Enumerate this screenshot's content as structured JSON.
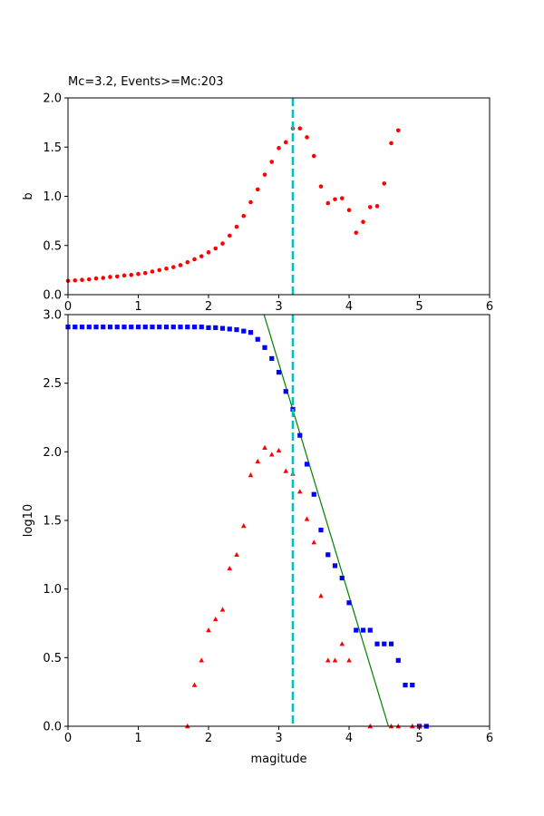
{
  "chart_data": [
    {
      "type": "scatter",
      "title": "Mc=3.2, Events>=Mc:203",
      "xlabel": "",
      "ylabel": "b",
      "xlim": [
        0,
        6
      ],
      "ylim": [
        0,
        2.0
      ],
      "xticks": [
        "0",
        "1",
        "2",
        "3",
        "4",
        "5",
        "6"
      ],
      "yticks": [
        "0.0",
        "0.5",
        "1.0",
        "1.5",
        "2.0"
      ],
      "grid": false,
      "mc_line_x": 3.2,
      "colors": {
        "points": "#ff0000",
        "mc_line": "#00bfbf"
      },
      "series": [
        {
          "x": [
            0.0,
            0.1,
            0.2,
            0.3,
            0.4,
            0.5,
            0.6,
            0.7,
            0.8,
            0.9,
            1.0,
            1.1,
            1.2,
            1.3,
            1.4,
            1.5,
            1.6,
            1.7,
            1.8,
            1.9,
            2.0,
            2.1,
            2.2,
            2.3,
            2.4,
            2.5,
            2.6,
            2.7,
            2.8,
            2.9,
            3.0,
            3.1,
            3.2,
            3.3,
            3.4,
            3.5,
            3.6,
            3.7,
            3.8,
            3.9,
            4.0,
            4.1,
            4.2,
            4.3,
            4.4,
            4.5,
            4.6,
            4.7
          ],
          "values": [
            0.14,
            0.145,
            0.15,
            0.155,
            0.165,
            0.17,
            0.18,
            0.185,
            0.195,
            0.2,
            0.21,
            0.22,
            0.235,
            0.25,
            0.265,
            0.28,
            0.3,
            0.33,
            0.36,
            0.39,
            0.43,
            0.47,
            0.52,
            0.6,
            0.69,
            0.8,
            0.94,
            1.07,
            1.22,
            1.35,
            1.49,
            1.55,
            1.69,
            1.69,
            1.6,
            1.41,
            1.1,
            0.93,
            0.97,
            0.98,
            0.86,
            0.63,
            0.74,
            0.89,
            0.9,
            1.13,
            1.54,
            1.67
          ]
        }
      ]
    },
    {
      "type": "scatter",
      "title": "",
      "xlabel": "magitude",
      "ylabel": "log10",
      "xlim": [
        0,
        6
      ],
      "ylim": [
        0,
        3.0
      ],
      "xticks": [
        "0",
        "1",
        "2",
        "3",
        "4",
        "5",
        "6"
      ],
      "yticks": [
        "0.0",
        "0.5",
        "1.0",
        "1.5",
        "2.0",
        "2.5",
        "3.0"
      ],
      "grid": false,
      "mc_line_x": 3.2,
      "colors": {
        "cumulative": "#0000ff",
        "noncumulative": "#ff0000",
        "fit": "#008000",
        "mc_line": "#00bfbf"
      },
      "fit_line": {
        "x": [
          2.79,
          4.56
        ],
        "y": [
          3.0,
          0.0
        ]
      },
      "series": [
        {
          "marker": "square",
          "x": [
            0.0,
            0.1,
            0.2,
            0.3,
            0.4,
            0.5,
            0.6,
            0.7,
            0.8,
            0.9,
            1.0,
            1.1,
            1.2,
            1.3,
            1.4,
            1.5,
            1.6,
            1.7,
            1.8,
            1.9,
            2.0,
            2.1,
            2.2,
            2.3,
            2.4,
            2.5,
            2.6,
            2.7,
            2.8,
            2.9,
            3.0,
            3.1,
            3.2,
            3.3,
            3.4,
            3.5,
            3.6,
            3.7,
            3.8,
            3.9,
            4.0,
            4.1,
            4.2,
            4.3,
            4.4,
            4.5,
            4.6,
            4.7,
            4.8,
            4.9,
            5.0,
            5.1
          ],
          "values": [
            2.91,
            2.91,
            2.91,
            2.91,
            2.91,
            2.91,
            2.91,
            2.91,
            2.91,
            2.91,
            2.91,
            2.91,
            2.91,
            2.91,
            2.91,
            2.91,
            2.91,
            2.91,
            2.91,
            2.91,
            2.905,
            2.905,
            2.9,
            2.895,
            2.89,
            2.88,
            2.87,
            2.82,
            2.76,
            2.68,
            2.58,
            2.44,
            2.31,
            2.12,
            1.91,
            1.69,
            1.43,
            1.25,
            1.17,
            1.08,
            0.9,
            0.7,
            0.7,
            0.7,
            0.6,
            0.6,
            0.6,
            0.48,
            0.3,
            0.3,
            0.0,
            0.0
          ]
        },
        {
          "marker": "triangle",
          "x": [
            1.7,
            1.8,
            1.9,
            2.0,
            2.1,
            2.2,
            2.3,
            2.4,
            2.5,
            2.6,
            2.7,
            2.8,
            2.9,
            3.0,
            3.1,
            3.2,
            3.3,
            3.4,
            3.5,
            3.6,
            3.7,
            3.8,
            3.9,
            4.0,
            4.3,
            4.6,
            4.7,
            4.9,
            5.0
          ],
          "values": [
            0.0,
            0.3,
            0.48,
            0.7,
            0.78,
            0.85,
            1.15,
            1.25,
            1.46,
            1.83,
            1.93,
            2.03,
            1.98,
            2.01,
            1.86,
            1.84,
            1.71,
            1.51,
            1.34,
            0.95,
            0.48,
            0.48,
            0.6,
            0.48,
            0.0,
            0.0,
            0.0,
            0.0,
            0.0
          ]
        }
      ]
    }
  ]
}
